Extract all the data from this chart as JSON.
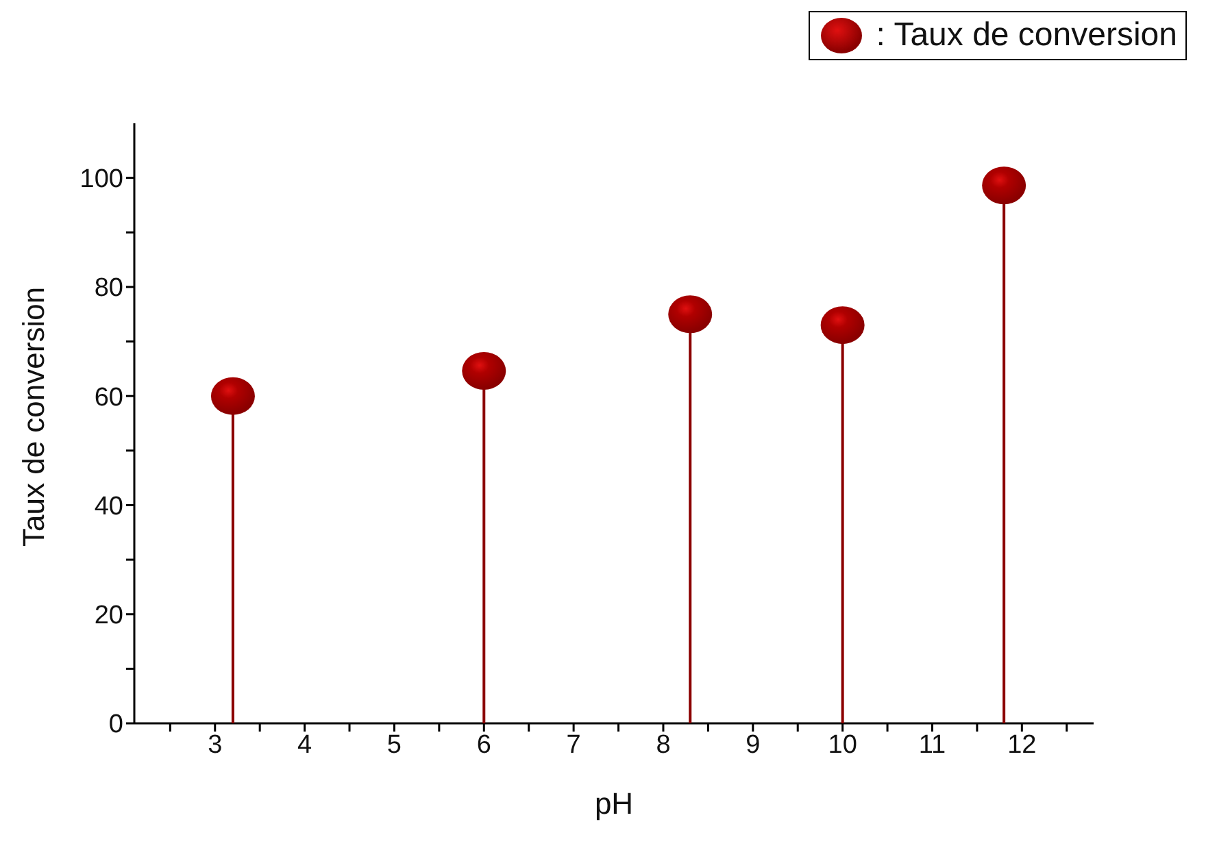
{
  "chart_data": {
    "type": "lollipop",
    "xlabel": "pH",
    "ylabel": "Taux de conversion",
    "x": [
      3.2,
      6,
      8.3,
      10,
      11.8
    ],
    "series": [
      {
        "name": ": Taux de conversion",
        "color": "#8b0000",
        "values": [
          60,
          64.6,
          75,
          73,
          98.6
        ]
      }
    ],
    "xlim": [
      2.1,
      12.8
    ],
    "xticks": [
      {
        "value": 2.5,
        "label": null
      },
      3,
      {
        "value": 3.5,
        "label": null
      },
      4,
      {
        "value": 4.5,
        "label": null
      },
      5,
      {
        "value": 5.5,
        "label": null
      },
      6,
      {
        "value": 6.5,
        "label": null
      },
      7,
      {
        "value": 7.5,
        "label": null
      },
      8,
      {
        "value": 8.5,
        "label": null
      },
      9,
      {
        "value": 9.5,
        "label": null
      },
      10,
      {
        "value": 10.5,
        "label": null
      },
      11,
      {
        "value": 11.5,
        "label": null
      },
      12,
      {
        "value": 12.5,
        "label": null
      }
    ],
    "ylim": [
      0,
      110
    ],
    "yticks": [
      0,
      {
        "value": 10,
        "label": null
      },
      20,
      {
        "value": 30,
        "label": null
      },
      40,
      {
        "value": 50,
        "label": null
      },
      60,
      {
        "value": 70,
        "label": null
      },
      80,
      {
        "value": 90,
        "label": null
      },
      100
    ],
    "legend": "top right",
    "grid": false,
    "marker": "circle"
  }
}
